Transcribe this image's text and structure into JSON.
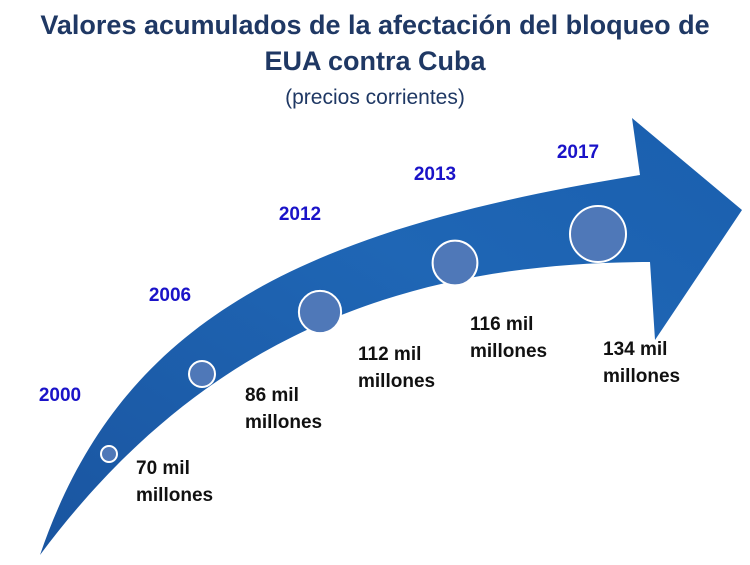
{
  "header": {
    "title_line1": "Valores acumulados de la afectación del bloqueo de",
    "title_line2": "EUA contra Cuba",
    "subtitle": "(precios corrientes)"
  },
  "chart_data": {
    "type": "line",
    "title": "Valores acumulados de la afectación del bloqueo de EUA contra Cuba",
    "subtitle": "(precios corrientes)",
    "x": [
      "2000",
      "2006",
      "2012",
      "2013",
      "2017"
    ],
    "values": [
      70,
      86,
      112,
      116,
      134
    ],
    "unit_label": "mil millones",
    "labels": [
      [
        "70 mil",
        "millones"
      ],
      [
        "86 mil",
        "millones"
      ],
      [
        "112 mil",
        "millones"
      ],
      [
        "116 mil",
        "millones"
      ],
      [
        "134 mil",
        "millones"
      ]
    ]
  },
  "colors": {
    "title": "#1f3864",
    "arrow_dark": "#1a55a0",
    "arrow_light": "#2a7fd0",
    "marker": "#4f78b8",
    "year": "#1a13c8",
    "value": "#111111"
  }
}
